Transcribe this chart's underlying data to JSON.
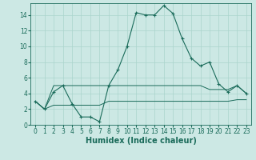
{
  "title": "",
  "xlabel": "Humidex (Indice chaleur)",
  "background_color": "#cce8e4",
  "line_color": "#1a6b5a",
  "grid_color": "#aad4cc",
  "x_ticks": [
    0,
    1,
    2,
    3,
    4,
    5,
    6,
    7,
    8,
    9,
    10,
    11,
    12,
    13,
    14,
    15,
    16,
    17,
    18,
    19,
    20,
    21,
    22,
    23
  ],
  "y_ticks": [
    0,
    2,
    4,
    6,
    8,
    10,
    12,
    14
  ],
  "ylim": [
    0,
    15.5
  ],
  "xlim": [
    -0.5,
    23.5
  ],
  "series1_x": [
    0,
    1,
    2,
    3,
    4,
    5,
    6,
    7,
    8,
    9,
    10,
    11,
    12,
    13,
    14,
    15,
    16,
    17,
    18,
    19,
    20,
    21,
    22,
    23
  ],
  "series1_y": [
    3.0,
    2.0,
    4.2,
    5.0,
    2.7,
    1.0,
    1.0,
    0.4,
    5.0,
    7.0,
    10.0,
    14.3,
    14.0,
    14.0,
    15.2,
    14.2,
    11.0,
    8.5,
    7.5,
    8.0,
    5.2,
    4.2,
    5.0,
    4.0
  ],
  "series2_x": [
    0,
    1,
    2,
    3,
    4,
    5,
    6,
    7,
    8,
    9,
    10,
    11,
    12,
    13,
    14,
    15,
    16,
    17,
    18,
    19,
    20,
    21,
    22,
    23
  ],
  "series2_y": [
    3.0,
    2.0,
    5.0,
    5.0,
    5.0,
    5.0,
    5.0,
    5.0,
    5.0,
    5.0,
    5.0,
    5.0,
    5.0,
    5.0,
    5.0,
    5.0,
    5.0,
    5.0,
    5.0,
    4.5,
    4.5,
    4.5,
    5.0,
    4.0
  ],
  "series3_x": [
    0,
    1,
    2,
    3,
    4,
    5,
    6,
    7,
    8,
    9,
    10,
    11,
    12,
    13,
    14,
    15,
    16,
    17,
    18,
    19,
    20,
    21,
    22,
    23
  ],
  "series3_y": [
    3.0,
    2.0,
    2.5,
    2.5,
    2.5,
    2.5,
    2.5,
    2.5,
    3.0,
    3.0,
    3.0,
    3.0,
    3.0,
    3.0,
    3.0,
    3.0,
    3.0,
    3.0,
    3.0,
    3.0,
    3.0,
    3.0,
    3.2,
    3.2
  ],
  "xlabel_fontsize": 7,
  "tick_fontsize": 5.5
}
